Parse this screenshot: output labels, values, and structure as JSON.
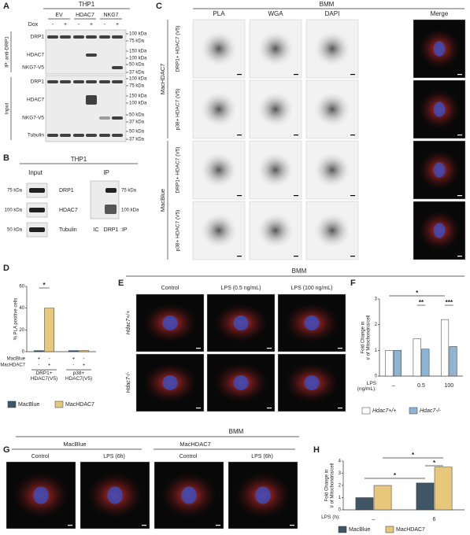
{
  "panel_labels": [
    "A",
    "B",
    "C",
    "D",
    "E",
    "F",
    "G",
    "H"
  ],
  "panel_a": {
    "title": "THP1",
    "columns": [
      "EV",
      "HDAC7",
      "NKG7"
    ],
    "dox_label": "Dox",
    "dox": [
      "-",
      "+",
      "-",
      "+",
      "-",
      "+"
    ],
    "ip_label": "IP: anti-DRP1",
    "input_label": "Input",
    "rows": [
      "DRP1",
      "HDAC7",
      "NKG7-V5",
      "DRP1",
      "HDAC7",
      "NKG7-V5",
      "Tubulin"
    ],
    "kda": [
      "100 kDa",
      "75 kDa",
      "150 kDa",
      "100 kDa",
      "50 kDa",
      "37 kDa",
      "100 kDa",
      "75 kDa",
      "150 kDa",
      "100 kDa",
      "50 kDa",
      "37 kDa",
      "50 kDa",
      "37 kDa"
    ]
  },
  "panel_b": {
    "title": "THP1",
    "input": "Input",
    "ip": "IP",
    "rows": [
      "DRP1",
      "HDAC7",
      "Tubulin"
    ],
    "left_kda": [
      "75 kDa",
      "100 kDa",
      "50 kDa"
    ],
    "right_kda": [
      "75 kDa",
      "100 kDa"
    ],
    "ip_lanes": [
      "IC",
      "DRP1"
    ],
    "ip_suffix": ":IP"
  },
  "panel_c": {
    "title": "BMM",
    "columns": [
      "PLA",
      "WGA",
      "DAPI",
      "Merge"
    ],
    "groups": [
      "MacHDAC7",
      "MacBlue"
    ],
    "rows": [
      "DRP1+ HDAC7 (V5)",
      "p38+ HDAC7 (V5)"
    ]
  },
  "panel_e": {
    "title": "BMM",
    "columns": [
      "Control",
      "LPS (0.5 ng/mL)",
      "LPS (100 ng/mL)"
    ],
    "rows": [
      "Hdac7+/+",
      "Hdac7-/-"
    ]
  },
  "panel_g": {
    "title": "BMM",
    "groups": [
      "MacBlue",
      "MacHDAC7"
    ],
    "columns": [
      "Control",
      "LPS (6h)",
      "Control",
      "LPS (6h)"
    ]
  },
  "chart_data": [
    {
      "type": "bar",
      "y_label": [
        "% PLA positive cells"
      ],
      "categories": [
        "DRP1+ HDAC7(V5)",
        "p38+ HDAC7(V5)"
      ],
      "series": [
        {
          "name": "MacBlue",
          "color": "#3e5666",
          "values": [
            1,
            1
          ]
        },
        {
          "name": "MacHDAC7",
          "color": "#e6c77c",
          "values": [
            40,
            1
          ]
        }
      ],
      "ylim": [
        0,
        60
      ],
      "yticks": [
        0,
        20,
        40,
        60
      ],
      "condition_rows": [
        {
          "label": "MacBlue",
          "signs": [
            "+",
            "-",
            "+",
            "-"
          ]
        },
        {
          "label": "MacHDAC7",
          "signs": [
            "-",
            "+",
            "-",
            "+"
          ]
        }
      ],
      "annotations": [
        "*"
      ]
    },
    {
      "type": "bar",
      "y_label": [
        "Fold Change in",
        "# of Mitochondria/cell"
      ],
      "x_label": "LPS (ng/mL):",
      "categories": [
        "–",
        "0.5",
        "100"
      ],
      "series": [
        {
          "name": "Hdac7+/+",
          "color": "#ffffff",
          "values": [
            1,
            1.45,
            2.2
          ]
        },
        {
          "name": "Hdac7-/-",
          "color": "#8db4d4",
          "values": [
            1,
            1.05,
            1.15
          ]
        }
      ],
      "ylim": [
        0,
        3
      ],
      "yticks": [
        0,
        1,
        2,
        3
      ],
      "annotations": [
        "*",
        "**",
        "***"
      ]
    },
    {
      "type": "bar",
      "y_label": [
        "Fold Change in",
        "# of Mitochondria/cell"
      ],
      "x_label": "LPS (h):",
      "categories": [
        "–",
        "6"
      ],
      "series": [
        {
          "name": "MacBlue",
          "color": "#3e5666",
          "values": [
            1,
            2.2
          ]
        },
        {
          "name": "MacHDAC7",
          "color": "#e6c77c",
          "values": [
            2,
            3.5
          ]
        }
      ],
      "ylim": [
        0,
        4
      ],
      "yticks": [
        0,
        1,
        2,
        3,
        4
      ],
      "annotations": [
        "*",
        "*",
        "*"
      ]
    }
  ]
}
